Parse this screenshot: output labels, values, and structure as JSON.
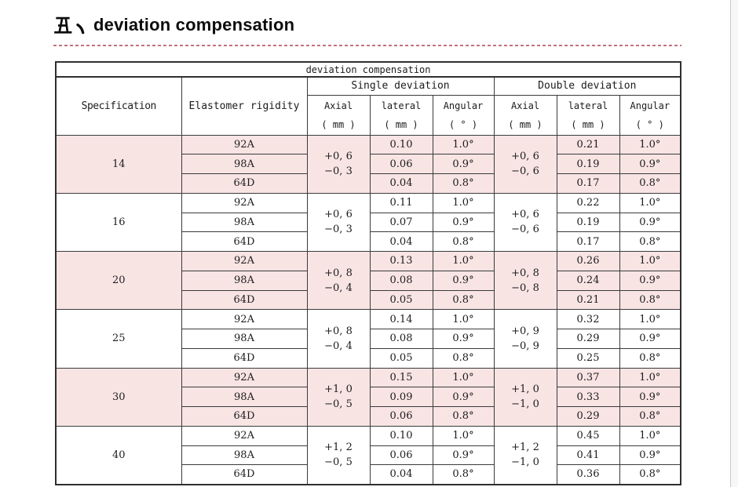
{
  "page": {
    "title_prefix": "五、",
    "title": "deviation compensation"
  },
  "table": {
    "caption": "deviation compensation",
    "headers": {
      "specification": "Specification",
      "elastomer_rigidity": "Elastomer rigidity",
      "single_deviation": "Single deviation",
      "double_deviation": "Double deviation",
      "sub_columns": [
        {
          "label": "Axial",
          "unit": "( mm )"
        },
        {
          "label": "lateral",
          "unit": "( mm )"
        },
        {
          "label": "Angular",
          "unit": "( ° )"
        },
        {
          "label": "Axial",
          "unit": "( mm )"
        },
        {
          "label": "lateral",
          "unit": "( mm )"
        },
        {
          "label": "Angular",
          "unit": "( ° )"
        }
      ]
    },
    "groups": [
      {
        "specification": "14",
        "highlight": true,
        "single_axial": [
          "+0, 6",
          "−0, 3"
        ],
        "double_axial": [
          "+0, 6",
          "−0, 6"
        ],
        "rows": [
          {
            "rigidity": "92A",
            "single_lateral": "0.10",
            "single_angular": "1.0°",
            "double_lateral": "0.21",
            "double_angular": "1.0°"
          },
          {
            "rigidity": "98A",
            "single_lateral": "0.06",
            "single_angular": "0.9°",
            "double_lateral": "0.19",
            "double_angular": "0.9°"
          },
          {
            "rigidity": "64D",
            "single_lateral": "0.04",
            "single_angular": "0.8°",
            "double_lateral": "0.17",
            "double_angular": "0.8°"
          }
        ]
      },
      {
        "specification": "16",
        "highlight": false,
        "single_axial": [
          "+0, 6",
          "−0, 3"
        ],
        "double_axial": [
          "+0, 6",
          "−0, 6"
        ],
        "rows": [
          {
            "rigidity": "92A",
            "single_lateral": "0.11",
            "single_angular": "1.0°",
            "double_lateral": "0.22",
            "double_angular": "1.0°"
          },
          {
            "rigidity": "98A",
            "single_lateral": "0.07",
            "single_angular": "0.9°",
            "double_lateral": "0.19",
            "double_angular": "0.9°"
          },
          {
            "rigidity": "64D",
            "single_lateral": "0.04",
            "single_angular": "0.8°",
            "double_lateral": "0.17",
            "double_angular": "0.8°"
          }
        ]
      },
      {
        "specification": "20",
        "highlight": true,
        "single_axial": [
          "+0, 8",
          "−0, 4"
        ],
        "double_axial": [
          "+0, 8",
          "−0, 8"
        ],
        "rows": [
          {
            "rigidity": "92A",
            "single_lateral": "0.13",
            "single_angular": "1.0°",
            "double_lateral": "0.26",
            "double_angular": "1.0°"
          },
          {
            "rigidity": "98A",
            "single_lateral": "0.08",
            "single_angular": "0.9°",
            "double_lateral": "0.24",
            "double_angular": "0.9°"
          },
          {
            "rigidity": "64D",
            "single_lateral": "0.05",
            "single_angular": "0.8°",
            "double_lateral": "0.21",
            "double_angular": "0.8°"
          }
        ]
      },
      {
        "specification": "25",
        "highlight": false,
        "single_axial": [
          "+0, 8",
          "−0, 4"
        ],
        "double_axial": [
          "+0, 9",
          "−0, 9"
        ],
        "rows": [
          {
            "rigidity": "92A",
            "single_lateral": "0.14",
            "single_angular": "1.0°",
            "double_lateral": "0.32",
            "double_angular": "1.0°"
          },
          {
            "rigidity": "98A",
            "single_lateral": "0.08",
            "single_angular": "0.9°",
            "double_lateral": "0.29",
            "double_angular": "0.9°"
          },
          {
            "rigidity": "64D",
            "single_lateral": "0.05",
            "single_angular": "0.8°",
            "double_lateral": "0.25",
            "double_angular": "0.8°"
          }
        ]
      },
      {
        "specification": "30",
        "highlight": true,
        "single_axial": [
          "+1, 0",
          "−0, 5"
        ],
        "double_axial": [
          "+1, 0",
          "−1, 0"
        ],
        "rows": [
          {
            "rigidity": "92A",
            "single_lateral": "0.15",
            "single_angular": "1.0°",
            "double_lateral": "0.37",
            "double_angular": "1.0°"
          },
          {
            "rigidity": "98A",
            "single_lateral": "0.09",
            "single_angular": "0.9°",
            "double_lateral": "0.33",
            "double_angular": "0.9°"
          },
          {
            "rigidity": "64D",
            "single_lateral": "0.06",
            "single_angular": "0.8°",
            "double_lateral": "0.29",
            "double_angular": "0.8°"
          }
        ]
      },
      {
        "specification": "40",
        "highlight": false,
        "single_axial": [
          "+1, 2",
          "−0, 5"
        ],
        "double_axial": [
          "+1, 2",
          "−1, 0"
        ],
        "rows": [
          {
            "rigidity": "92A",
            "single_lateral": "0.10",
            "single_angular": "1.0°",
            "double_lateral": "0.45",
            "double_angular": "1.0°"
          },
          {
            "rigidity": "98A",
            "single_lateral": "0.06",
            "single_angular": "0.9°",
            "double_lateral": "0.41",
            "double_angular": "0.9°"
          },
          {
            "rigidity": "64D",
            "single_lateral": "0.04",
            "single_angular": "0.8°",
            "double_lateral": "0.36",
            "double_angular": "0.8°"
          }
        ]
      }
    ]
  },
  "colors": {
    "highlight_row": "#f9e4e4",
    "divider_dashes": "#c4707e",
    "table_border": "#3a3a3a"
  }
}
